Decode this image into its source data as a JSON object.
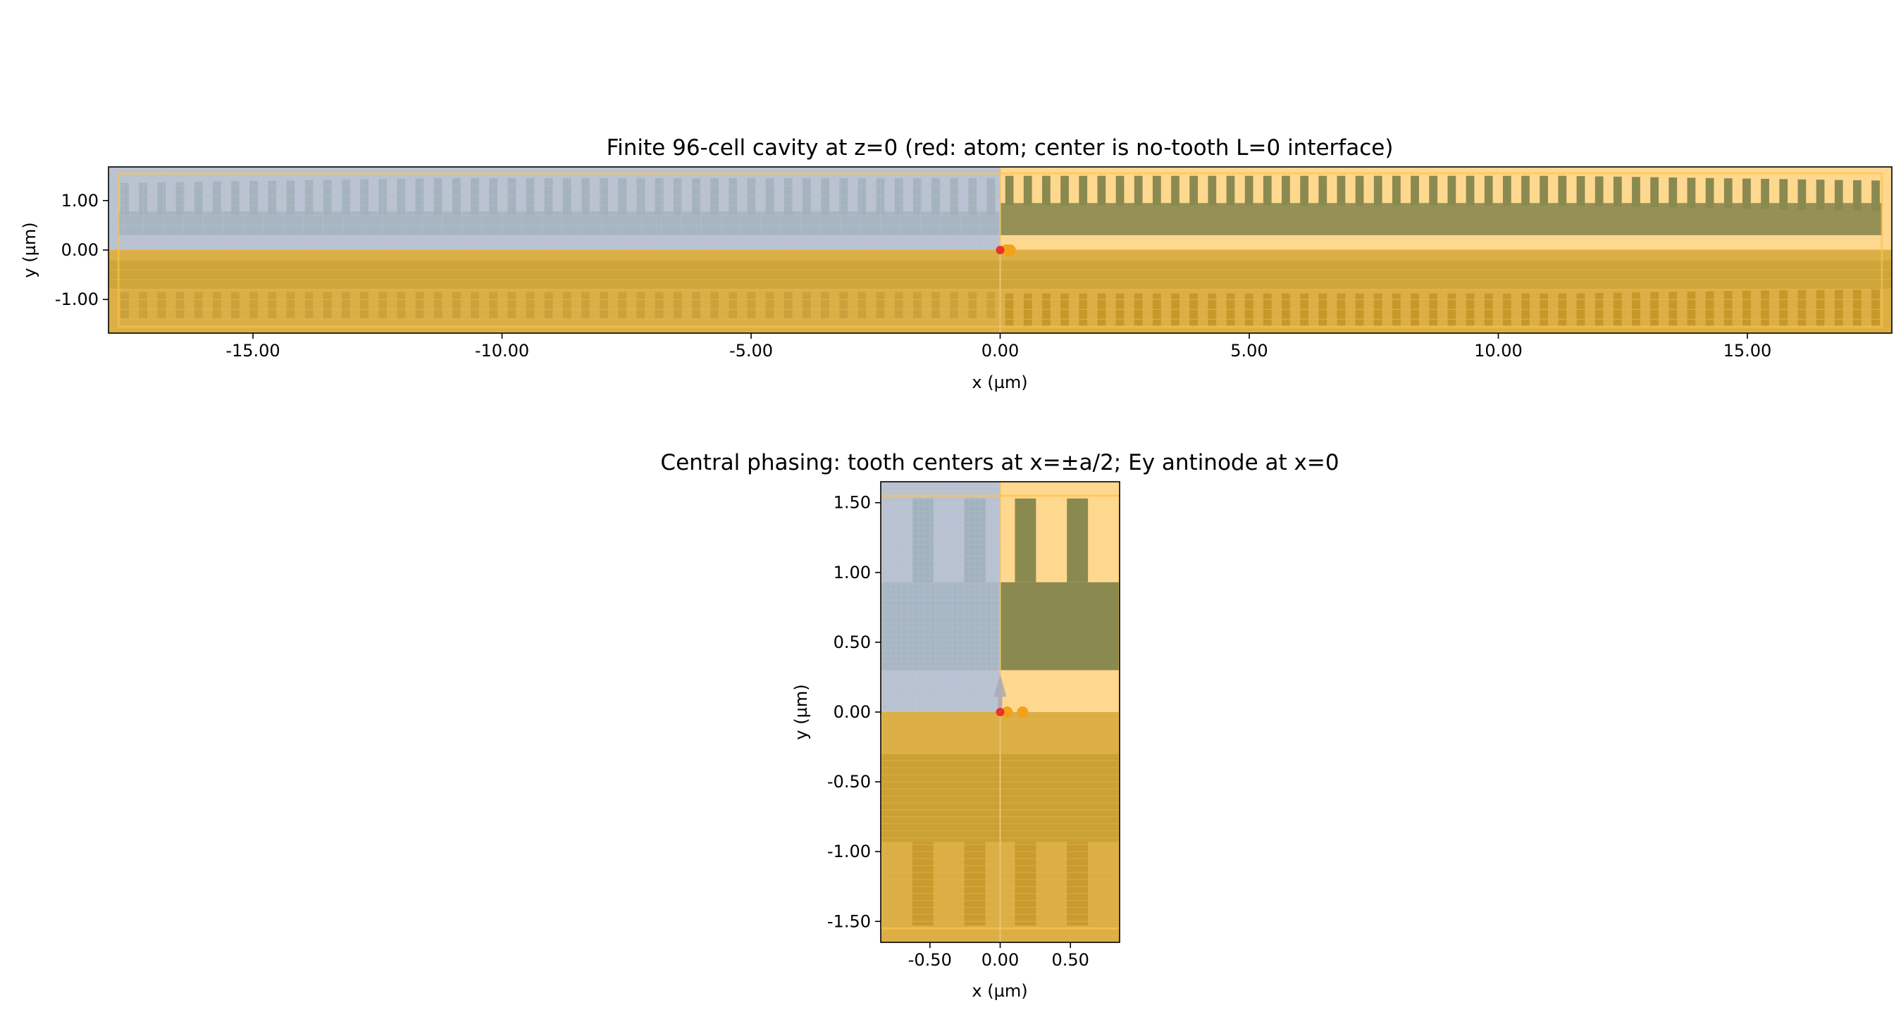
{
  "chart_data": [
    {
      "type": "diagram",
      "title": "Finite 96-cell cavity at z=0 (red: atom; center is no-tooth L=0 interface)",
      "xlabel": "x (µm)",
      "ylabel": "y (µm)",
      "xlim": [
        -17.9,
        17.9
      ],
      "ylim": [
        -1.68,
        1.68
      ],
      "xticks": [
        -15,
        -10,
        -5,
        0,
        5,
        10,
        15
      ],
      "xtick_labels": [
        "-15.00",
        "-10.00",
        "-5.00",
        "0.00",
        "5.00",
        "10.00",
        "15.00"
      ],
      "yticks": [
        1,
        0,
        -1
      ],
      "ytick_labels": [
        "1.00",
        "0.00",
        "-1.00"
      ],
      "grid": false,
      "atom": {
        "x": 0,
        "y": 0,
        "color": "#e8332a"
      },
      "markers": [
        {
          "x": 0.12,
          "y": 0
        },
        {
          "x": 0.2,
          "y": 0
        }
      ],
      "colors": {
        "left_region": "#aebfdc",
        "right_region": "#ffd890",
        "lower_region": "#d9ab3c",
        "tooth": "#8a8a50",
        "teeth_lower": "#c6982a"
      }
    },
    {
      "type": "diagram",
      "title": "Central phasing: tooth centers at x=±a/2; Ey antinode at x=0",
      "xlabel": "x (µm)",
      "ylabel": "y (µm)",
      "xlim": [
        -0.85,
        0.85
      ],
      "ylim": [
        -1.65,
        1.65
      ],
      "xticks": [
        -0.5,
        0,
        0.5
      ],
      "xtick_labels": [
        "-0.50",
        "0.00",
        "0.50"
      ],
      "yticks": [
        1.5,
        1.0,
        0.5,
        0,
        -0.5,
        -1.0,
        -1.5
      ],
      "ytick_labels": [
        "1.50",
        "1.00",
        "0.50",
        "0.00",
        "-0.50",
        "-1.00",
        "-1.50"
      ],
      "grid": false,
      "atom": {
        "x": 0,
        "y": 0,
        "color": "#e8332a"
      },
      "markers": [
        {
          "x": 0.05,
          "y": 0
        },
        {
          "x": 0.16,
          "y": 0
        }
      ],
      "colors": {
        "left_region": "#aebfdc",
        "right_region": "#ffd890",
        "lower_region": "#d9ab3c",
        "tooth": "#8a8a50",
        "teeth_lower": "#c6982a"
      }
    }
  ]
}
